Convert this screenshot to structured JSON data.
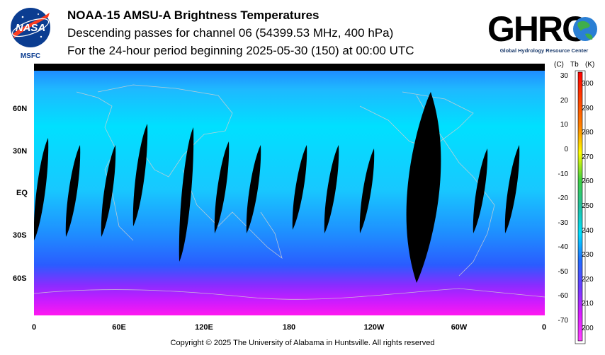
{
  "header": {
    "title": "NOAA-15 AMSU-A Brightness Temperatures",
    "subtitle": "Descending passes for channel 06 (54399.53 MHz, 400 hPa)",
    "period": "For the 24-hour period beginning 2025-05-30 (150) at 00:00 UTC"
  },
  "logos": {
    "left_text": "NASA",
    "left_caption": "MSFC",
    "right_text": "GHRC",
    "right_caption": "Global Hydrology Resource Center"
  },
  "map": {
    "lat_labels": [
      "60N",
      "30N",
      "EQ",
      "30S",
      "60S"
    ],
    "lon_labels": [
      "0",
      "60E",
      "120E",
      "180",
      "120W",
      "60W",
      "0"
    ],
    "colors": {
      "warm": "#00d8ff",
      "mid": "#1f6cff",
      "cold": "#8a2cff",
      "polar": "#e81cff",
      "gap": "#000000",
      "coast": "#d0d0d0"
    }
  },
  "colorbar": {
    "header_c": "(C)",
    "header_tb": "Tb",
    "header_k": "(K)",
    "celsius_ticks": [
      "30",
      "20",
      "10",
      "0",
      "-10",
      "-20",
      "-30",
      "-40",
      "-50",
      "-60",
      "-70"
    ],
    "kelvin_ticks": [
      "300",
      "290",
      "280",
      "270",
      "260",
      "250",
      "240",
      "230",
      "220",
      "210",
      "200"
    ],
    "range_k": [
      195,
      305
    ]
  },
  "footer": {
    "copyright": "Copyright © 2025 The University of Alabama in Huntsville.  All rights reserved"
  }
}
